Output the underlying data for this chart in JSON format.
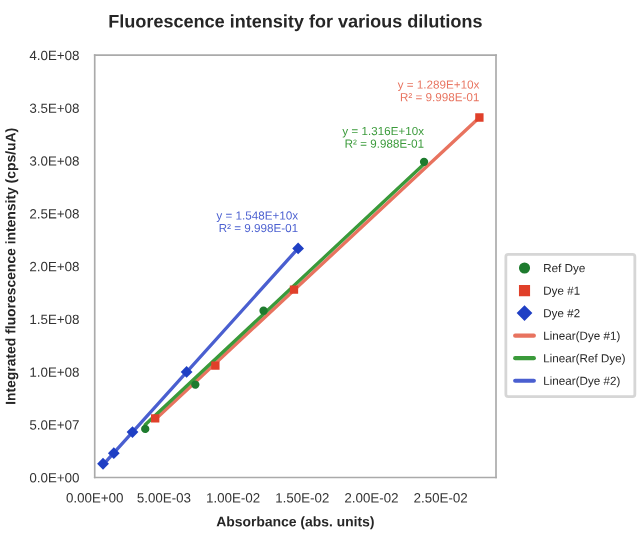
{
  "chart_data": {
    "type": "scatter",
    "title": "Fluorescence intensity for various dilutions",
    "xlabel": "Absorbance (abs. units)",
    "ylabel": "Integrated fluorescence intensity (cps/uA)",
    "series": [
      {
        "name": "Ref Dye",
        "color": "#1e7b2e",
        "marker": "circle",
        "x": [
          0.00365,
          0.00727,
          0.0122,
          0.0238
        ],
        "values": [
          46000000.0,
          88000000.0,
          158000000.0,
          299000000.0
        ]
      },
      {
        "name": "Dye #1",
        "color": "#e0402a",
        "marker": "square",
        "x": [
          0.00437,
          0.00872,
          0.0144,
          0.0278
        ],
        "values": [
          56000000.0,
          106000000.0,
          178000000.0,
          341000000.0
        ]
      },
      {
        "name": "Dye #2",
        "color": "#1f3fc4",
        "marker": "diamond",
        "x": [
          0.0006,
          0.00138,
          0.00273,
          0.00664,
          0.0147
        ],
        "values": [
          13000000.0,
          23000000.0,
          43000000.0,
          100000000.0,
          217000000.0
        ]
      },
      {
        "name": "Linear(Dye #1)",
        "type": "line",
        "color": "#e8735f",
        "marker": "none",
        "x": [
          0.00437,
          0.0278
        ],
        "values": [
          55000000.0,
          341000000.0
        ]
      },
      {
        "name": "Linear(Ref Dye)",
        "type": "line",
        "color": "#3a9a3a",
        "marker": "none",
        "x": [
          0.00365,
          0.0238
        ],
        "values": [
          50000000.0,
          297000000.0
        ]
      },
      {
        "name": "Linear(Dye #2)",
        "type": "line",
        "color": "#4a5fd0",
        "marker": "none",
        "x": [
          0.0006,
          0.0147
        ],
        "values": [
          12000000.0,
          217000000.0
        ]
      }
    ],
    "annotations": [
      {
        "text": "y = 1.289E+10x\nR² = 9.998E-01",
        "x": 0.0278,
        "y": 341000000.0
      },
      {
        "text": "y = 1.316E+10x\nR² = 9.988E-01",
        "x": 0.0238,
        "y": 297000000.0
      },
      {
        "text": "y = 1.548E+10x\nR² = 9.998E-01",
        "x": 0.0147,
        "y": 217000000.0
      }
    ],
    "xlim": [
      0,
      0.029
    ],
    "xticks": [
      {
        "value": 0,
        "label": "0.00E+00"
      },
      {
        "value": 0.005,
        "label": "5.00E-03"
      },
      {
        "value": 0.01,
        "label": "1.00E-02"
      },
      {
        "value": 0.015,
        "label": "1.50E-02"
      },
      {
        "value": 0.02,
        "label": "2.00E-02"
      },
      {
        "value": 0.025,
        "label": "2.50E-02"
      }
    ],
    "ylim": [
      0,
      400000000.0
    ],
    "yticks": [
      {
        "value": 0,
        "label": "0.0E+00"
      },
      {
        "value": 50000000.0,
        "label": "5.0E+07"
      },
      {
        "value": 100000000.0,
        "label": "1.0E+08"
      },
      {
        "value": 150000000.0,
        "label": "1.5E+08"
      },
      {
        "value": 200000000.0,
        "label": "2.0E+08"
      },
      {
        "value": 250000000.0,
        "label": "2.5E+08"
      },
      {
        "value": 300000000.0,
        "label": "3.0E+08"
      },
      {
        "value": 350000000.0,
        "label": "3.5E+08"
      },
      {
        "value": 400000000.0,
        "label": "4.0E+08"
      }
    ],
    "grid": false,
    "legend": "right"
  }
}
